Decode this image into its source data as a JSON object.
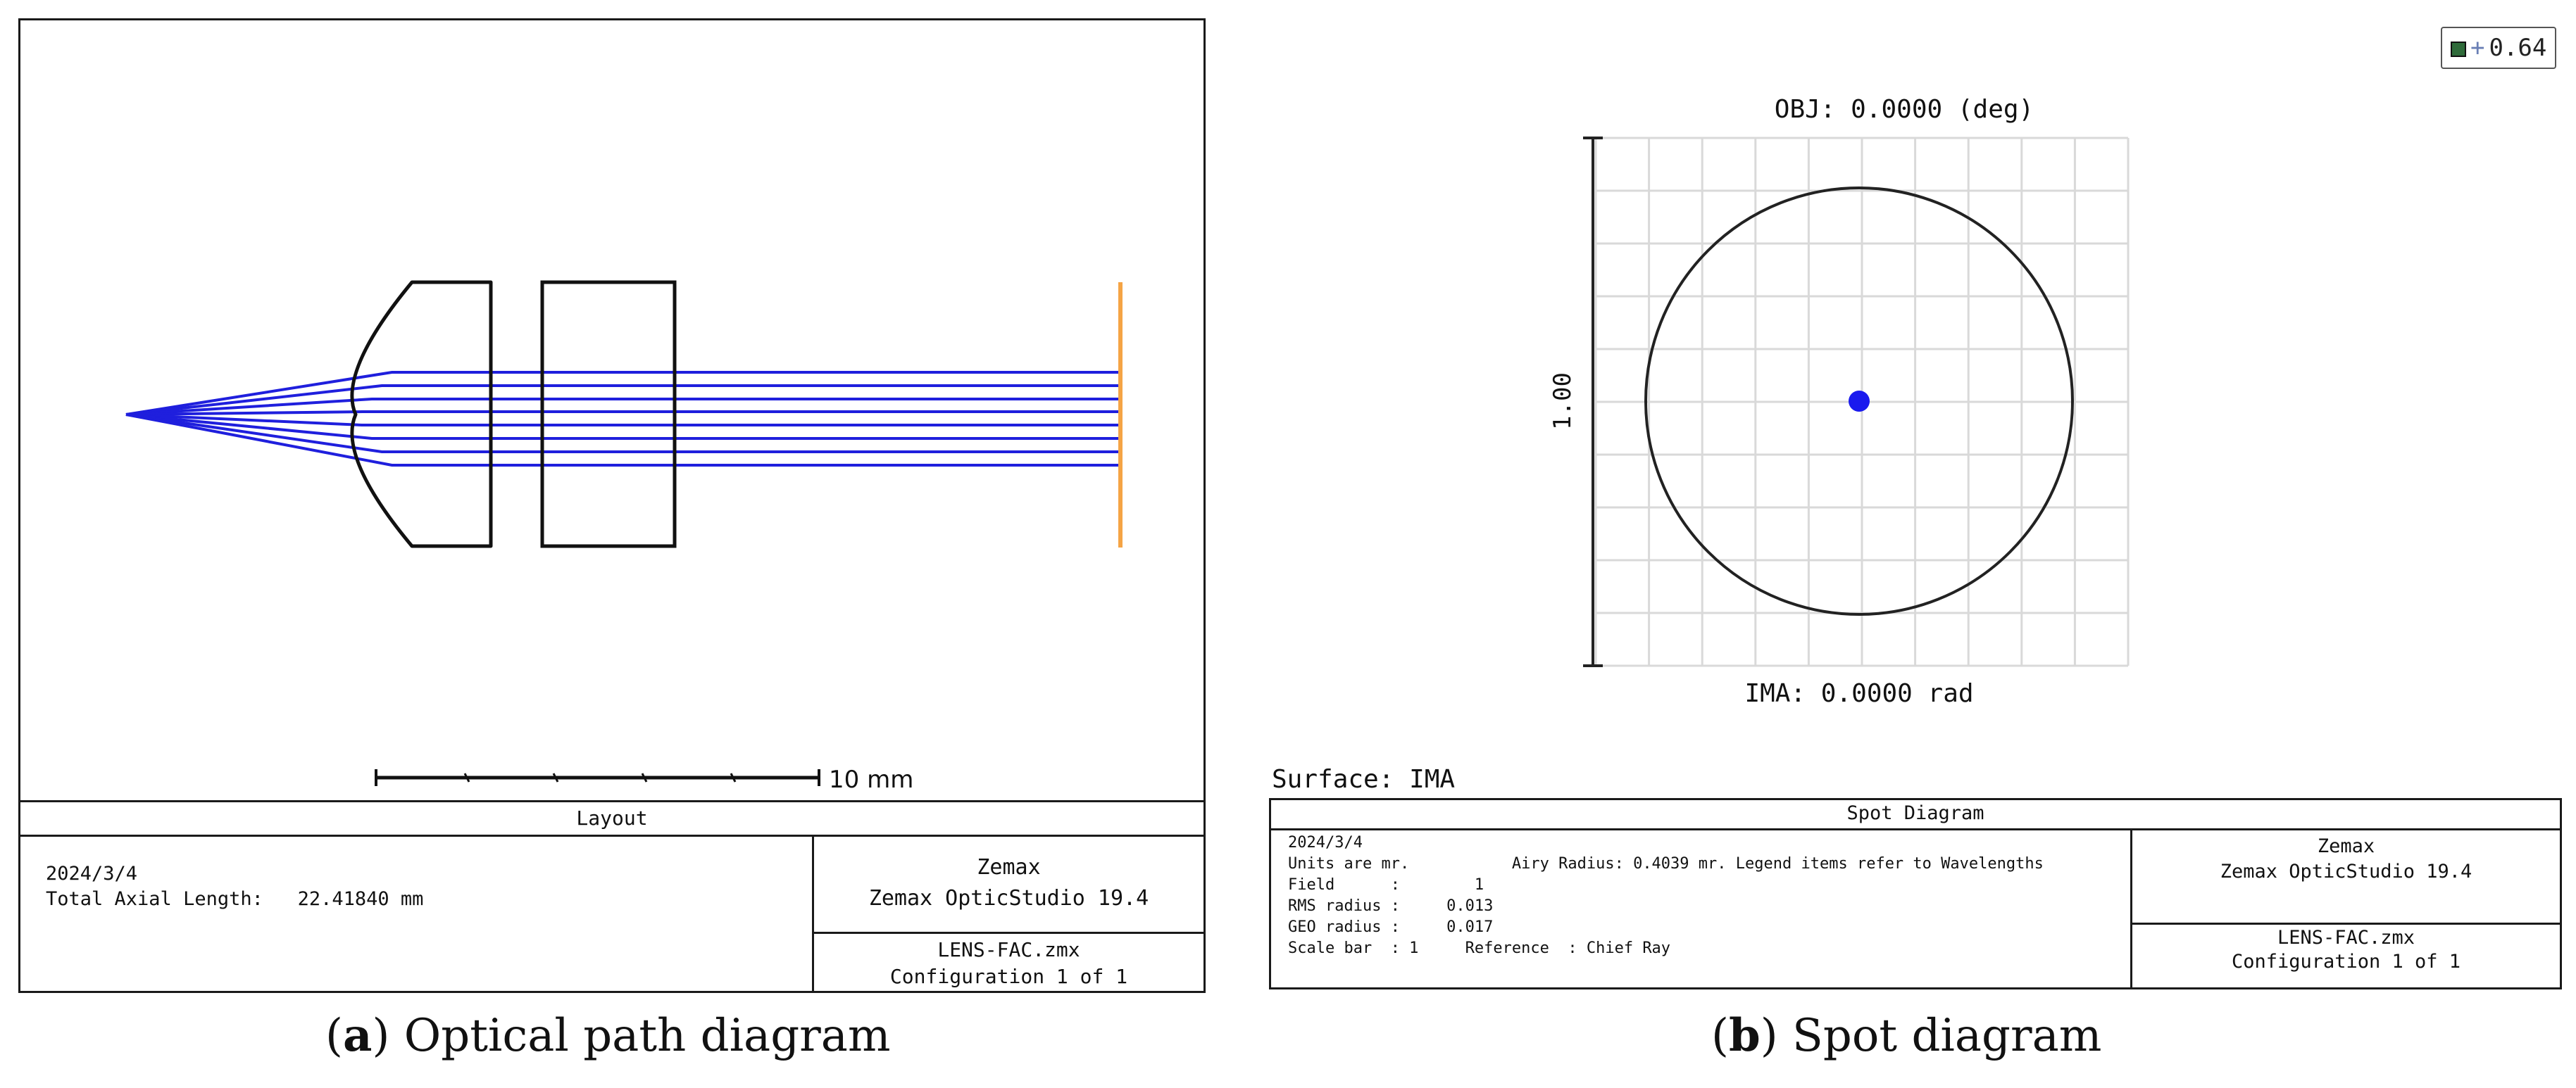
{
  "panel_a": {
    "footer_title": "Layout",
    "date": "2024/3/4",
    "total_axial_length": "Total Axial Length:   22.41840 mm",
    "software_company": "Zemax",
    "software_name": "Zemax OpticStudio 19.4",
    "file_name": "LENS-FAC.zmx",
    "configuration": "Configuration 1 of 1",
    "scale_bar_label": "10 mm",
    "colors": {
      "rays": "#1f1fdd",
      "lens_outline": "#111111",
      "image_plane": "#f5a445"
    }
  },
  "panel_b": {
    "zoom_label": "0.64",
    "object_label": "OBJ: 0.0000 (deg)",
    "image_label": "IMA: 0.0000 rad",
    "scale_label": "1.00",
    "surface_label": "Surface: IMA",
    "footer_title": "Spot Diagram",
    "date": "2024/3/4",
    "units_line": "Units are mr.           Airy Radius: 0.4039 mr. Legend items refer to Wavelengths",
    "field_line": "Field      :        1",
    "rms_line": "RMS radius :     0.013",
    "geo_line": "GEO radius :     0.017",
    "scale_line": "Scale bar  : 1     Reference  : Chief Ray",
    "software_company": "Zemax",
    "software_name": "Zemax OpticStudio 19.4",
    "file_name": "LENS-FAC.zmx",
    "configuration": "Configuration 1 of 1",
    "colors": {
      "spot": "#1a1aee",
      "grid": "#d9d9d9",
      "airy_circle": "#222222"
    }
  },
  "captions": {
    "a_letter": "a",
    "a_text": " Optical path diagram",
    "b_letter": "b",
    "b_text": " Spot diagram"
  }
}
